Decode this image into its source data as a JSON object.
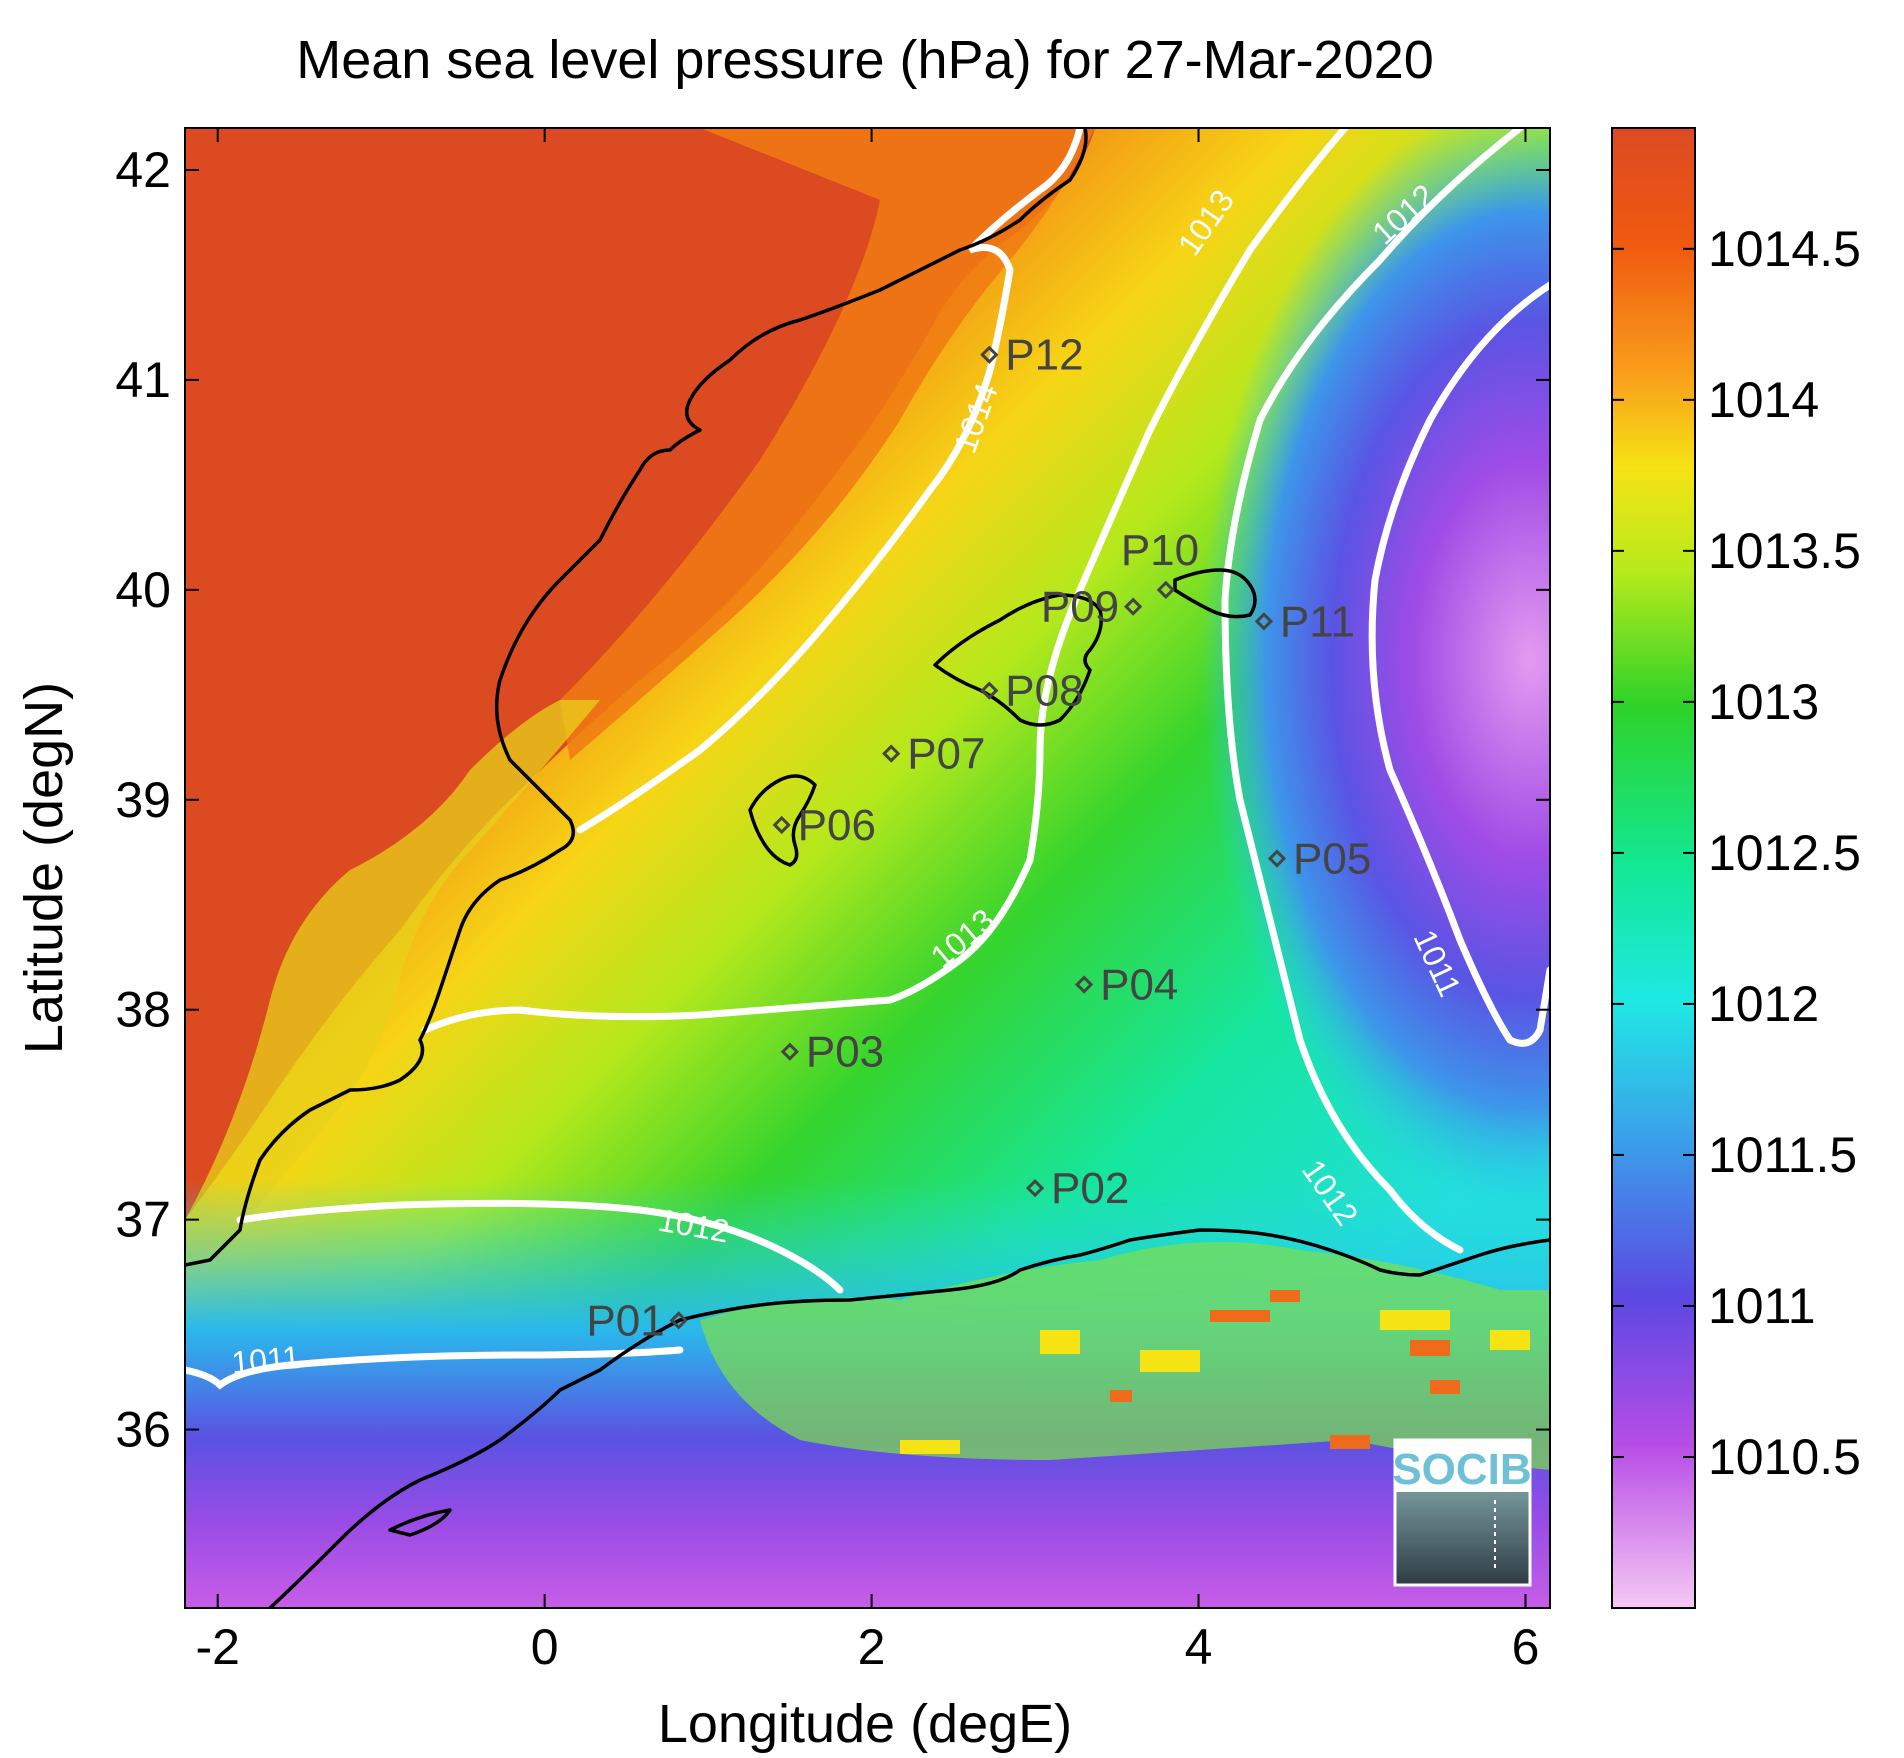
{
  "title": "Mean sea level pressure (hPa) for 27-Mar-2020",
  "x_axis": {
    "label": "Longitude (degE)",
    "range": [
      -2.2,
      6.15
    ],
    "ticks": [
      {
        "value": -2,
        "label": "-2"
      },
      {
        "value": 0,
        "label": "0"
      },
      {
        "value": 2,
        "label": "2"
      },
      {
        "value": 4,
        "label": "4"
      },
      {
        "value": 6,
        "label": "6"
      }
    ]
  },
  "y_axis": {
    "label": "Latitude (degN)",
    "range": [
      35.15,
      42.2
    ],
    "ticks": [
      {
        "value": 36,
        "label": "36"
      },
      {
        "value": 37,
        "label": "37"
      },
      {
        "value": 38,
        "label": "38"
      },
      {
        "value": 39,
        "label": "39"
      },
      {
        "value": 40,
        "label": "40"
      },
      {
        "value": 41,
        "label": "41"
      },
      {
        "value": 42,
        "label": "42"
      }
    ]
  },
  "colorbar": {
    "range": [
      1010.0,
      1014.9
    ],
    "ticks": [
      {
        "value": 1010.5,
        "label": "1010.5"
      },
      {
        "value": 1011,
        "label": "1011"
      },
      {
        "value": 1011.5,
        "label": "1011.5"
      },
      {
        "value": 1012,
        "label": "1012"
      },
      {
        "value": 1012.5,
        "label": "1012.5"
      },
      {
        "value": 1013,
        "label": "1013"
      },
      {
        "value": 1013.5,
        "label": "1013.5"
      },
      {
        "value": 1014,
        "label": "1014"
      },
      {
        "value": 1014.5,
        "label": "1014.5"
      }
    ],
    "colormap": "jet-like (pink/violet at low, blue, cyan, green, yellow, orange, red-orange at high)"
  },
  "stations": [
    {
      "id": "P01",
      "label": "P01",
      "lon": 0.82,
      "lat": 36.52
    },
    {
      "id": "P02",
      "label": "P02",
      "lon": 3.0,
      "lat": 37.15
    },
    {
      "id": "P03",
      "label": "P03",
      "lon": 1.5,
      "lat": 37.8
    },
    {
      "id": "P04",
      "label": "P04",
      "lon": 3.3,
      "lat": 38.12
    },
    {
      "id": "P05",
      "label": "P05",
      "lon": 4.48,
      "lat": 38.72
    },
    {
      "id": "P06",
      "label": "P06",
      "lon": 1.45,
      "lat": 38.88
    },
    {
      "id": "P07",
      "label": "P07",
      "lon": 2.12,
      "lat": 39.22
    },
    {
      "id": "P08",
      "label": "P08",
      "lon": 2.72,
      "lat": 39.52
    },
    {
      "id": "P09",
      "label": "P09",
      "lon": 3.6,
      "lat": 39.92
    },
    {
      "id": "P10",
      "label": "P10",
      "lon": 3.8,
      "lat": 40.0
    },
    {
      "id": "P11",
      "label": "P11",
      "lon": 4.4,
      "lat": 39.85
    },
    {
      "id": "P12",
      "label": "P12",
      "lon": 2.72,
      "lat": 41.12
    }
  ],
  "contour_labels": [
    {
      "value": "1014",
      "lon": 2.7,
      "lat": 40.8
    },
    {
      "value": "1013",
      "lon": 4.1,
      "lat": 41.72
    },
    {
      "value": "1013",
      "lon": 2.6,
      "lat": 38.3
    },
    {
      "value": "1012",
      "lon": 5.3,
      "lat": 41.75
    },
    {
      "value": "1012",
      "lon": 4.75,
      "lat": 37.1
    },
    {
      "value": "1012",
      "lon": 0.9,
      "lat": 36.92
    },
    {
      "value": "1011",
      "lon": 5.4,
      "lat": 38.2
    },
    {
      "value": "1011",
      "lon": -1.7,
      "lat": 36.28
    }
  ],
  "logo": {
    "text": "SOCIB"
  },
  "colors": {
    "contour": "#ffffff",
    "coastline": "#000000",
    "station_marker": "#444444"
  }
}
